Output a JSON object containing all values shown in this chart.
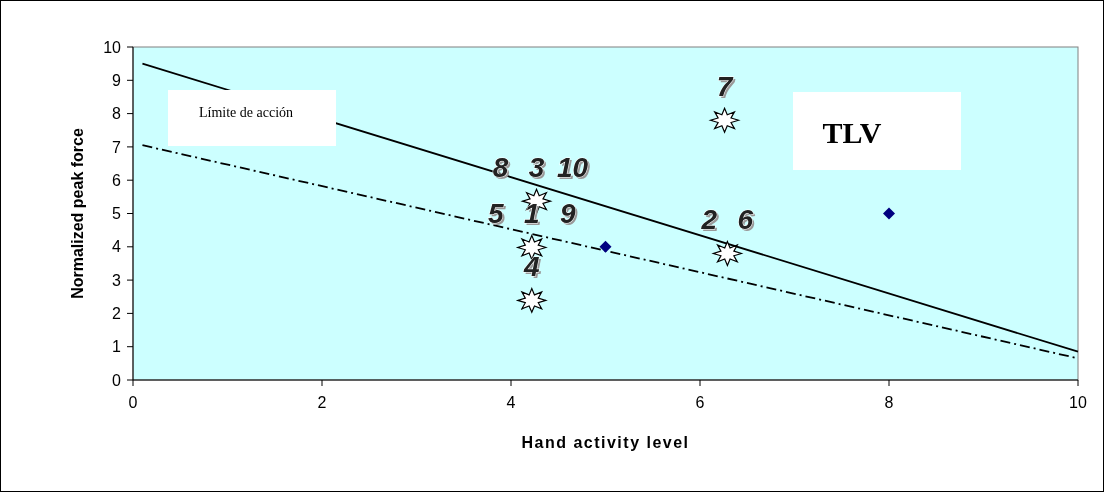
{
  "chart_data": {
    "type": "scatter",
    "xlabel": "Hand activity level",
    "ylabel": "Normalized peak force",
    "xlim": [
      0,
      10
    ],
    "ylim": [
      0,
      10
    ],
    "xticks": [
      0,
      2,
      4,
      6,
      8,
      10
    ],
    "yticks": [
      0,
      1,
      2,
      3,
      4,
      5,
      6,
      7,
      8,
      9,
      10
    ],
    "grid": false,
    "series": [
      {
        "type": "line",
        "color": "#000000",
        "line_style": "solid",
        "marker": "none",
        "x": [
          0.1,
          10
        ],
        "values": [
          9.5,
          0.85
        ]
      },
      {
        "type": "line",
        "color": "#000000",
        "line_style": "dashdot",
        "marker": "none",
        "x": [
          0.1,
          10
        ],
        "values": [
          7.05,
          0.65
        ]
      },
      {
        "color": "#ffffff",
        "marker": "star",
        "x": [
          4.27,
          4.22,
          4.22,
          6.26,
          6.29
        ],
        "values": [
          5.37,
          3.98,
          2.39,
          7.8,
          3.8
        ]
      },
      {
        "color": "#000080",
        "marker": "diamond",
        "x": [
          5,
          8
        ],
        "values": [
          4,
          5
        ]
      }
    ],
    "annotations": [
      "Límite de acción",
      "TLV",
      {
        "text": "8",
        "x": 4.27,
        "y": 5.37
      },
      {
        "text": "3",
        "x": 4.27,
        "y": 5.37
      },
      {
        "text": "10",
        "x": 4.27,
        "y": 5.37
      },
      {
        "text": "5",
        "x": 4.22,
        "y": 3.98
      },
      {
        "text": "1",
        "x": 4.22,
        "y": 3.98
      },
      {
        "text": "9",
        "x": 4.22,
        "y": 3.98
      },
      {
        "text": "4",
        "x": 4.22,
        "y": 2.39
      },
      {
        "text": "7",
        "x": 6.26,
        "y": 7.8
      },
      {
        "text": "2",
        "x": 6.29,
        "y": 3.8
      },
      {
        "text": "6",
        "x": 6.29,
        "y": 3.8
      }
    ]
  }
}
